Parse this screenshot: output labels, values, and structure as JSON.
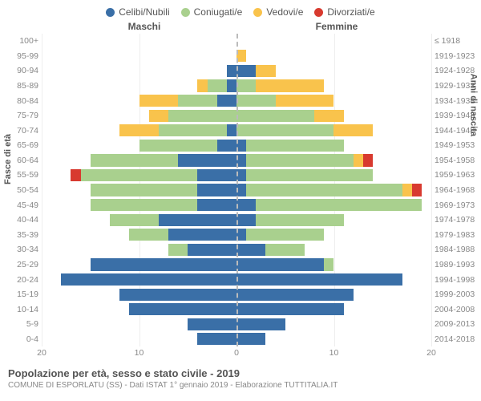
{
  "legend": [
    {
      "label": "Celibi/Nubili",
      "color": "#3a6fa7"
    },
    {
      "label": "Coniugati/e",
      "color": "#a9d08e"
    },
    {
      "label": "Vedovi/e",
      "color": "#f9c34c"
    },
    {
      "label": "Divorziati/e",
      "color": "#d83a2f"
    }
  ],
  "gender_left": "Maschi",
  "gender_right": "Femmine",
  "axis_left_title": "Fasce di età",
  "axis_right_title": "Anni di nascita",
  "title_main": "Popolazione per età, sesso e stato civile - 2019",
  "title_sub": "COMUNE DI ESPORLATU (SS) - Dati ISTAT 1° gennaio 2019 - Elaborazione TUTTITALIA.IT",
  "x_ticks": [
    20,
    10,
    0,
    10,
    20
  ],
  "x_max": 20,
  "grid_color": "#eee",
  "centerline_color": "#bbb",
  "background_color": "#ffffff",
  "label_fontsize": 10.5,
  "title_fontsize": 13,
  "rows": [
    {
      "age": "100+",
      "birth": "≤ 1918",
      "m": [
        0,
        0,
        0,
        0
      ],
      "f": [
        0,
        0,
        0,
        0
      ]
    },
    {
      "age": "95-99",
      "birth": "1919-1923",
      "m": [
        0,
        0,
        0,
        0
      ],
      "f": [
        0,
        0,
        1,
        0
      ]
    },
    {
      "age": "90-94",
      "birth": "1924-1928",
      "m": [
        1,
        0,
        0,
        0
      ],
      "f": [
        2,
        0,
        2,
        0
      ]
    },
    {
      "age": "85-89",
      "birth": "1929-1933",
      "m": [
        1,
        2,
        1,
        0
      ],
      "f": [
        0,
        2,
        7,
        0
      ]
    },
    {
      "age": "80-84",
      "birth": "1934-1938",
      "m": [
        2,
        4,
        4,
        0
      ],
      "f": [
        0,
        4,
        6,
        0
      ]
    },
    {
      "age": "75-79",
      "birth": "1939-1943",
      "m": [
        0,
        7,
        2,
        0
      ],
      "f": [
        0,
        8,
        3,
        0
      ]
    },
    {
      "age": "70-74",
      "birth": "1944-1948",
      "m": [
        1,
        7,
        4,
        0
      ],
      "f": [
        0,
        10,
        4,
        0
      ]
    },
    {
      "age": "65-69",
      "birth": "1949-1953",
      "m": [
        2,
        8,
        0,
        0
      ],
      "f": [
        1,
        10,
        0,
        0
      ]
    },
    {
      "age": "60-64",
      "birth": "1954-1958",
      "m": [
        6,
        9,
        0,
        0
      ],
      "f": [
        1,
        11,
        1,
        1
      ]
    },
    {
      "age": "55-59",
      "birth": "1959-1963",
      "m": [
        4,
        12,
        0,
        1
      ],
      "f": [
        1,
        13,
        0,
        0
      ]
    },
    {
      "age": "50-54",
      "birth": "1964-1968",
      "m": [
        4,
        11,
        0,
        0
      ],
      "f": [
        1,
        16,
        1,
        1
      ]
    },
    {
      "age": "45-49",
      "birth": "1969-1973",
      "m": [
        4,
        11,
        0,
        0
      ],
      "f": [
        2,
        17,
        0,
        0
      ]
    },
    {
      "age": "40-44",
      "birth": "1974-1978",
      "m": [
        8,
        5,
        0,
        0
      ],
      "f": [
        2,
        9,
        0,
        0
      ]
    },
    {
      "age": "35-39",
      "birth": "1979-1983",
      "m": [
        7,
        4,
        0,
        0
      ],
      "f": [
        1,
        8,
        0,
        0
      ]
    },
    {
      "age": "30-34",
      "birth": "1984-1988",
      "m": [
        5,
        2,
        0,
        0
      ],
      "f": [
        3,
        4,
        0,
        0
      ]
    },
    {
      "age": "25-29",
      "birth": "1989-1993",
      "m": [
        15,
        0,
        0,
        0
      ],
      "f": [
        9,
        1,
        0,
        0
      ]
    },
    {
      "age": "20-24",
      "birth": "1994-1998",
      "m": [
        18,
        0,
        0,
        0
      ],
      "f": [
        17,
        0,
        0,
        0
      ]
    },
    {
      "age": "15-19",
      "birth": "1999-2003",
      "m": [
        12,
        0,
        0,
        0
      ],
      "f": [
        12,
        0,
        0,
        0
      ]
    },
    {
      "age": "10-14",
      "birth": "2004-2008",
      "m": [
        11,
        0,
        0,
        0
      ],
      "f": [
        11,
        0,
        0,
        0
      ]
    },
    {
      "age": "5-9",
      "birth": "2009-2013",
      "m": [
        5,
        0,
        0,
        0
      ],
      "f": [
        5,
        0,
        0,
        0
      ]
    },
    {
      "age": "0-4",
      "birth": "2014-2018",
      "m": [
        4,
        0,
        0,
        0
      ],
      "f": [
        3,
        0,
        0,
        0
      ]
    }
  ]
}
